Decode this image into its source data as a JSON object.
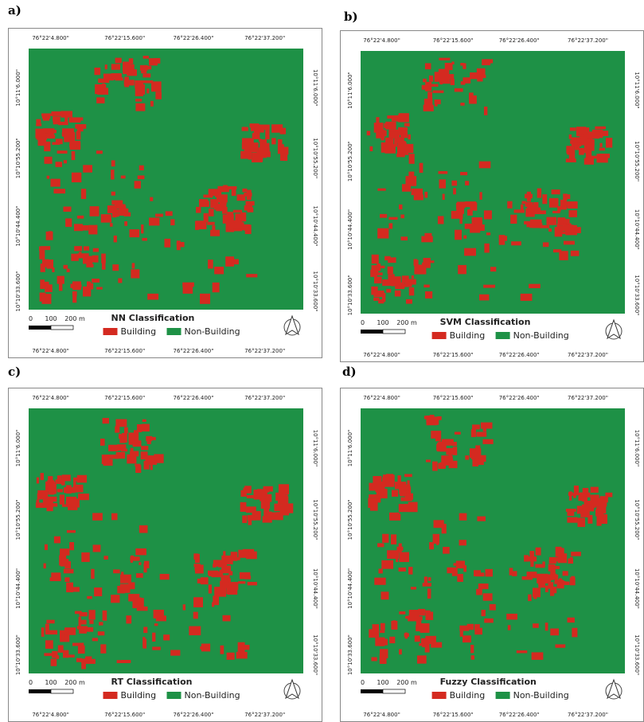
{
  "coordinates": {
    "longitudes": [
      "76°22'4.800\"",
      "76°22'15.600\"",
      "76°22'26.400\"",
      "76°22'37.200\""
    ],
    "latitudes": [
      "10°11'6.000\"",
      "10°10'55.200\"",
      "10°10'44.400\"",
      "10°10'33.600\""
    ]
  },
  "scale_bar": [
    "0",
    "100",
    "200 m"
  ],
  "legend": {
    "building": "Building",
    "non_building": "Non-Building"
  },
  "panels": [
    {
      "label": "a)",
      "title": "NN Classification"
    },
    {
      "label": "b)",
      "title": "SVM Classification"
    },
    {
      "label": "c)",
      "title": "RT Classification"
    },
    {
      "label": "d)",
      "title": "Fuzzy Classification"
    }
  ]
}
